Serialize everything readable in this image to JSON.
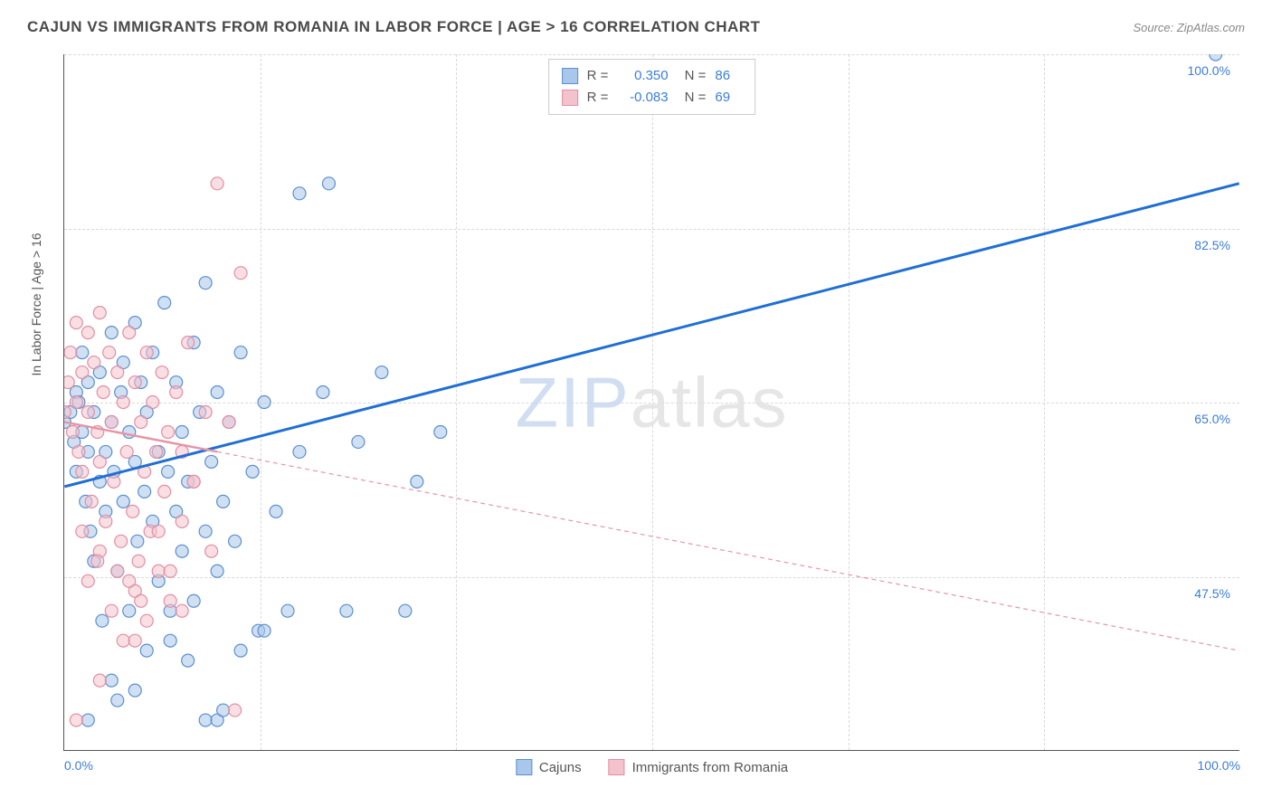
{
  "title": "CAJUN VS IMMIGRANTS FROM ROMANIA IN LABOR FORCE | AGE > 16 CORRELATION CHART",
  "source_label": "Source: ZipAtlas.com",
  "watermark": {
    "part1": "ZIP",
    "part2": "atlas"
  },
  "chart": {
    "type": "scatter",
    "ylabel": "In Labor Force | Age > 16",
    "xlim": [
      0,
      100
    ],
    "ylim": [
      30,
      100
    ],
    "xticks": [
      0,
      100
    ],
    "xtick_labels": [
      "0.0%",
      "100.0%"
    ],
    "ytick_values": [
      47.5,
      65.0,
      82.5,
      100.0
    ],
    "ytick_labels": [
      "47.5%",
      "65.0%",
      "82.5%",
      "100.0%"
    ],
    "grid_xticks_minor": [
      16.67,
      33.33,
      50,
      66.67,
      83.33
    ],
    "background_color": "#ffffff",
    "grid_color": "#d8d8d8",
    "marker_radius": 7,
    "marker_opacity": 0.55,
    "series": [
      {
        "name": "Cajuns",
        "color_fill": "#a9c7ea",
        "color_stroke": "#5b8fd0",
        "r": "0.350",
        "n": "86",
        "trend": {
          "x1": 0,
          "y1": 56.5,
          "x2": 100,
          "y2": 87,
          "stroke": "#1f6fd4",
          "width": 3,
          "dash": "none"
        },
        "points": [
          [
            0,
            63
          ],
          [
            0.5,
            64
          ],
          [
            0.8,
            61
          ],
          [
            1,
            66
          ],
          [
            1,
            58
          ],
          [
            1.2,
            65
          ],
          [
            1.5,
            70
          ],
          [
            1.5,
            62
          ],
          [
            1.8,
            55
          ],
          [
            2,
            60
          ],
          [
            2,
            67
          ],
          [
            2.2,
            52
          ],
          [
            2.5,
            64
          ],
          [
            2.5,
            49
          ],
          [
            3,
            68
          ],
          [
            3,
            57
          ],
          [
            3.2,
            43
          ],
          [
            3.5,
            60
          ],
          [
            3.5,
            54
          ],
          [
            4,
            72
          ],
          [
            4,
            63
          ],
          [
            4.2,
            58
          ],
          [
            4.5,
            48
          ],
          [
            4.8,
            66
          ],
          [
            5,
            55
          ],
          [
            5,
            69
          ],
          [
            5.5,
            62
          ],
          [
            5.5,
            44
          ],
          [
            6,
            73
          ],
          [
            6,
            59
          ],
          [
            6.2,
            51
          ],
          [
            6.5,
            67
          ],
          [
            6.8,
            56
          ],
          [
            7,
            64
          ],
          [
            7.5,
            53
          ],
          [
            7.5,
            70
          ],
          [
            8,
            60
          ],
          [
            8,
            47
          ],
          [
            8.5,
            75
          ],
          [
            8.8,
            58
          ],
          [
            9,
            44
          ],
          [
            9.5,
            67
          ],
          [
            9.5,
            54
          ],
          [
            10,
            62
          ],
          [
            10,
            50
          ],
          [
            10.5,
            57
          ],
          [
            11,
            71
          ],
          [
            11,
            45
          ],
          [
            11.5,
            64
          ],
          [
            12,
            52
          ],
          [
            12,
            77
          ],
          [
            12.5,
            59
          ],
          [
            13,
            66
          ],
          [
            13,
            48
          ],
          [
            13.5,
            55
          ],
          [
            14,
            63
          ],
          [
            14.5,
            51
          ],
          [
            15,
            70
          ],
          [
            16,
            58
          ],
          [
            16.5,
            42
          ],
          [
            17,
            65
          ],
          [
            18,
            54
          ],
          [
            19,
            44
          ],
          [
            20,
            86
          ],
          [
            20,
            60
          ],
          [
            22,
            66
          ],
          [
            24,
            44
          ],
          [
            25,
            61
          ],
          [
            27,
            68
          ],
          [
            29,
            44
          ],
          [
            30,
            57
          ],
          [
            32,
            62
          ],
          [
            4,
            37
          ],
          [
            6,
            36
          ],
          [
            12,
            33
          ],
          [
            13,
            33
          ],
          [
            13.5,
            34
          ],
          [
            2,
            33
          ],
          [
            7,
            40
          ],
          [
            9,
            41
          ],
          [
            10.5,
            39
          ],
          [
            15,
            40
          ],
          [
            17,
            42
          ],
          [
            4.5,
            35
          ],
          [
            98,
            100
          ],
          [
            22.5,
            87
          ]
        ]
      },
      {
        "name": "Immigrants from Romania",
        "color_fill": "#f4c2cd",
        "color_stroke": "#e18fa3",
        "r": "-0.083",
        "n": "69",
        "trend": {
          "x1": 0,
          "y1": 63,
          "x2": 100,
          "y2": 40,
          "stroke": "#e596a8",
          "width": 1.2,
          "dash": "5,4",
          "solid_until_x": 13
        },
        "points": [
          [
            0,
            64
          ],
          [
            0.3,
            67
          ],
          [
            0.5,
            70
          ],
          [
            0.7,
            62
          ],
          [
            1,
            73
          ],
          [
            1,
            65
          ],
          [
            1.2,
            60
          ],
          [
            1.5,
            68
          ],
          [
            1.5,
            58
          ],
          [
            2,
            72
          ],
          [
            2,
            64
          ],
          [
            2.3,
            55
          ],
          [
            2.5,
            69
          ],
          [
            2.8,
            62
          ],
          [
            3,
            74
          ],
          [
            3,
            59
          ],
          [
            3.3,
            66
          ],
          [
            3.5,
            53
          ],
          [
            3.8,
            70
          ],
          [
            4,
            63
          ],
          [
            4.2,
            57
          ],
          [
            4.5,
            68
          ],
          [
            4.8,
            51
          ],
          [
            5,
            65
          ],
          [
            5.3,
            60
          ],
          [
            5.5,
            72
          ],
          [
            5.8,
            54
          ],
          [
            6,
            67
          ],
          [
            6.3,
            49
          ],
          [
            6.5,
            63
          ],
          [
            6.8,
            58
          ],
          [
            7,
            70
          ],
          [
            7.3,
            52
          ],
          [
            7.5,
            65
          ],
          [
            7.8,
            60
          ],
          [
            8,
            48
          ],
          [
            8.3,
            68
          ],
          [
            8.5,
            56
          ],
          [
            8.8,
            62
          ],
          [
            9,
            45
          ],
          [
            9.5,
            66
          ],
          [
            10,
            53
          ],
          [
            10,
            60
          ],
          [
            10.5,
            71
          ],
          [
            11,
            57
          ],
          [
            12,
            64
          ],
          [
            12.5,
            50
          ],
          [
            13,
            87
          ],
          [
            14,
            63
          ],
          [
            15,
            78
          ],
          [
            2,
            47
          ],
          [
            3,
            50
          ],
          [
            4,
            44
          ],
          [
            5,
            41
          ],
          [
            6,
            46
          ],
          [
            7,
            43
          ],
          [
            8,
            52
          ],
          [
            4.5,
            48
          ],
          [
            1.5,
            52
          ],
          [
            2.8,
            49
          ],
          [
            6.5,
            45
          ],
          [
            9,
            48
          ],
          [
            5.5,
            47
          ],
          [
            1,
            33
          ],
          [
            3,
            37
          ],
          [
            6,
            41
          ],
          [
            10,
            44
          ],
          [
            11,
            57
          ],
          [
            14.5,
            34
          ]
        ]
      }
    ],
    "legend_bottom": [
      {
        "label": "Cajuns",
        "fill": "#a9c7ea",
        "stroke": "#5b8fd0"
      },
      {
        "label": "Immigrants from Romania",
        "fill": "#f4c2cd",
        "stroke": "#e18fa3"
      }
    ]
  }
}
